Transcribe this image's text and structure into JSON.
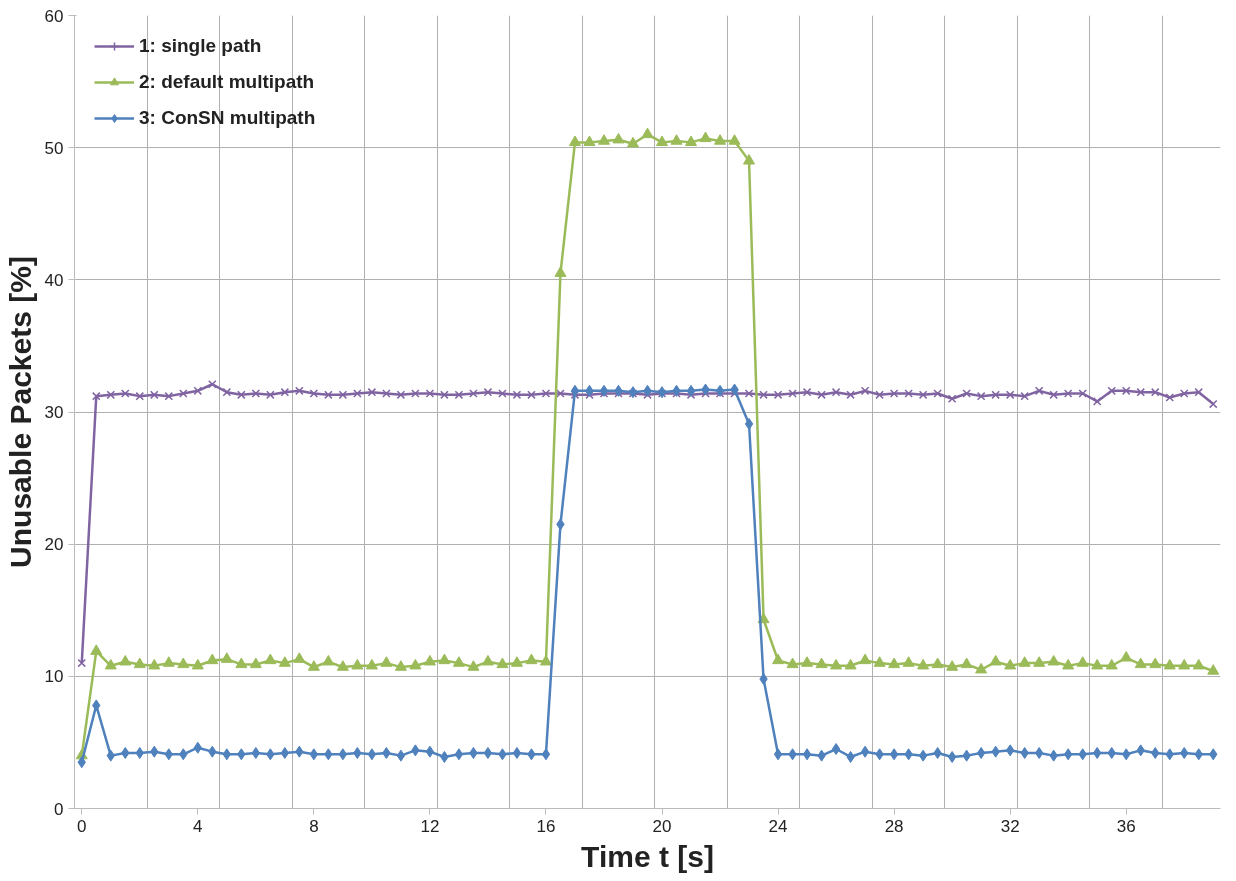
{
  "chart_data": {
    "type": "line",
    "xlabel": "Time t [s]",
    "ylabel": "Unusable Packets [%]",
    "x": [
      0,
      0.5,
      1,
      1.5,
      2,
      2.5,
      3,
      3.5,
      4,
      4.5,
      5,
      5.5,
      6,
      6.5,
      7,
      7.5,
      8,
      8.5,
      9,
      9.5,
      10,
      10.5,
      11,
      11.5,
      12,
      12.5,
      13,
      13.5,
      14,
      14.5,
      15,
      15.5,
      16,
      16.5,
      17,
      17.5,
      18,
      18.5,
      19,
      19.5,
      20,
      20.5,
      21,
      21.5,
      22,
      22.5,
      23,
      23.5,
      24,
      24.5,
      25,
      25.5,
      26,
      26.5,
      27,
      27.5,
      28,
      28.5,
      29,
      29.5,
      30,
      30.5,
      31,
      31.5,
      32,
      32.5,
      33,
      33.5,
      34,
      34.5,
      35,
      35.5,
      36,
      36.5,
      37,
      37.5,
      38,
      38.5,
      39
    ],
    "xlim": [
      -0.25,
      39.25
    ],
    "xticks": [
      0,
      {
        "value": 2.25,
        "label": null
      },
      4,
      {
        "value": 4.75,
        "label": null
      },
      {
        "value": 7.25,
        "label": null
      },
      8,
      {
        "value": 9.75,
        "label": null
      },
      12,
      {
        "value": 12.25,
        "label": null
      },
      {
        "value": 14.75,
        "label": null
      },
      16,
      {
        "value": 17.25,
        "label": null
      },
      {
        "value": 19.75,
        "label": null
      },
      20,
      {
        "value": 22.25,
        "label": null
      },
      24,
      {
        "value": 24.75,
        "label": null
      },
      {
        "value": 27.25,
        "label": null
      },
      28,
      {
        "value": 29.75,
        "label": null
      },
      32,
      {
        "value": 32.25,
        "label": null
      },
      {
        "value": 34.75,
        "label": null
      },
      36,
      {
        "value": 37.25,
        "label": null
      }
    ],
    "ylim": [
      0,
      60
    ],
    "yticks": [
      0,
      10,
      20,
      30,
      40,
      50,
      60
    ],
    "grid": true,
    "legend": "top left",
    "series": [
      {
        "name": "1: single path",
        "color": "#8064a2",
        "marker": "cross",
        "values": [
          11,
          31.2,
          31.3,
          31.4,
          31.2,
          31.3,
          31.2,
          31.4,
          31.6,
          32.1,
          31.5,
          31.3,
          31.4,
          31.3,
          31.5,
          31.6,
          31.4,
          31.3,
          31.3,
          31.4,
          31.5,
          31.4,
          31.3,
          31.4,
          31.4,
          31.3,
          31.3,
          31.4,
          31.5,
          31.4,
          31.3,
          31.3,
          31.4,
          31.4,
          31.3,
          31.3,
          31.4,
          31.4,
          31.4,
          31.3,
          31.4,
          31.4,
          31.3,
          31.4,
          31.4,
          31.4,
          31.4,
          31.3,
          31.3,
          31.4,
          31.5,
          31.3,
          31.5,
          31.3,
          31.6,
          31.3,
          31.4,
          31.4,
          31.3,
          31.4,
          31.0,
          31.4,
          31.2,
          31.3,
          31.3,
          31.2,
          31.6,
          31.3,
          31.4,
          31.4,
          30.8,
          31.6,
          31.6,
          31.5,
          31.5,
          31.1,
          31.4,
          31.5,
          30.6
        ]
      },
      {
        "name": "2: default multipath",
        "color": "#9bbb59",
        "marker": "triangle",
        "values": [
          4,
          11.9,
          10.8,
          11.1,
          10.9,
          10.8,
          11.0,
          10.9,
          10.8,
          11.2,
          11.3,
          10.9,
          10.9,
          11.2,
          11.0,
          11.3,
          10.7,
          11.1,
          10.7,
          10.8,
          10.8,
          11.0,
          10.7,
          10.8,
          11.1,
          11.2,
          11.0,
          10.7,
          11.1,
          10.9,
          11.0,
          11.2,
          11.1,
          40.5,
          50.4,
          50.4,
          50.5,
          50.6,
          50.3,
          51.0,
          50.4,
          50.5,
          50.4,
          50.7,
          50.5,
          50.5,
          49.0,
          14.3,
          11.2,
          10.9,
          11.0,
          10.9,
          10.8,
          10.8,
          11.2,
          11.0,
          10.9,
          11.0,
          10.8,
          10.9,
          10.7,
          10.9,
          10.5,
          11.1,
          10.8,
          11.0,
          11.0,
          11.1,
          10.8,
          11.0,
          10.8,
          10.8,
          11.4,
          10.9,
          10.9,
          10.8,
          10.8,
          10.8,
          10.4
        ]
      },
      {
        "name": "3: ConSN multipath",
        "color": "#4f81bd",
        "marker": "diamond",
        "values": [
          3.5,
          7.8,
          4.0,
          4.2,
          4.2,
          4.3,
          4.1,
          4.1,
          4.6,
          4.3,
          4.1,
          4.1,
          4.2,
          4.1,
          4.2,
          4.3,
          4.1,
          4.1,
          4.1,
          4.2,
          4.1,
          4.2,
          4.0,
          4.4,
          4.3,
          3.9,
          4.1,
          4.2,
          4.2,
          4.1,
          4.2,
          4.1,
          4.1,
          21.5,
          31.6,
          31.6,
          31.6,
          31.6,
          31.5,
          31.6,
          31.5,
          31.6,
          31.6,
          31.7,
          31.6,
          31.7,
          29.1,
          9.8,
          4.1,
          4.1,
          4.1,
          4.0,
          4.5,
          3.9,
          4.3,
          4.1,
          4.1,
          4.1,
          4.0,
          4.2,
          3.9,
          4.0,
          4.2,
          4.3,
          4.4,
          4.2,
          4.2,
          4.0,
          4.1,
          4.1,
          4.2,
          4.2,
          4.1,
          4.4,
          4.2,
          4.1,
          4.2,
          4.1,
          4.1
        ]
      }
    ]
  }
}
